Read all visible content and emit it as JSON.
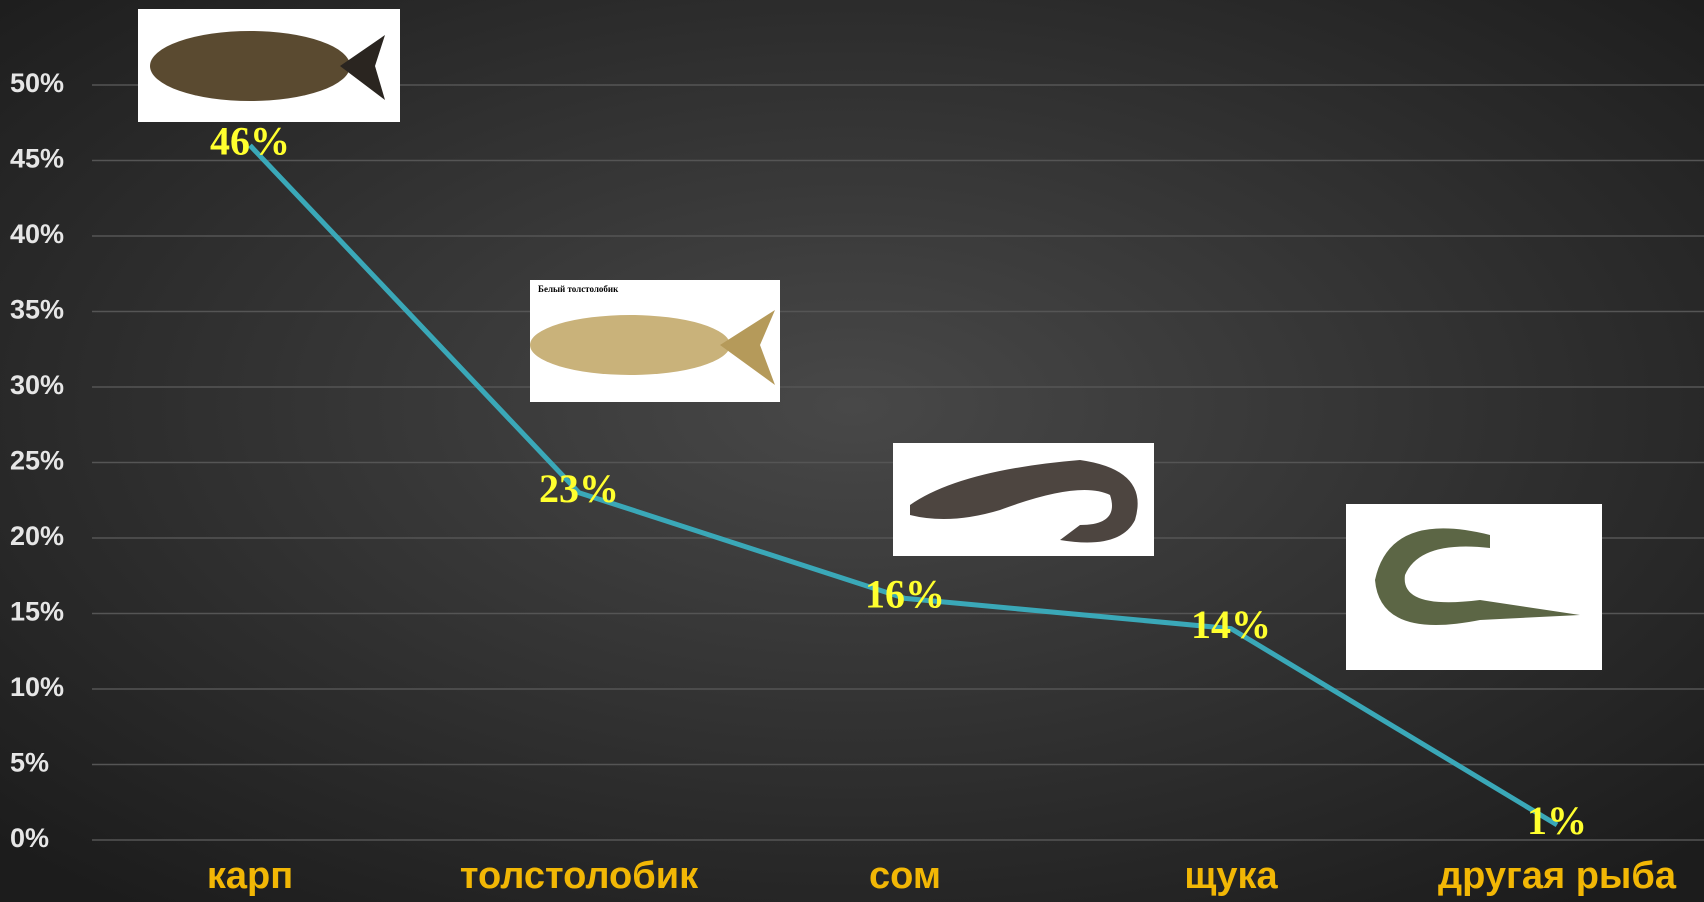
{
  "chart_data": {
    "type": "line",
    "categories": [
      "карп",
      "толстолобик",
      "сом",
      "щука",
      "другая рыба"
    ],
    "series": [
      {
        "values": [
          46,
          23,
          16,
          14,
          1
        ],
        "value_labels": [
          "46%",
          "23%",
          "16%",
          "14%",
          "1%"
        ],
        "color": "#3aa8b8"
      }
    ],
    "ylim": [
      0,
      50
    ],
    "yticks": [
      {
        "value": 0,
        "label": "0%"
      },
      {
        "value": 5,
        "label": "5%"
      },
      {
        "value": 10,
        "label": "10%"
      },
      {
        "value": 15,
        "label": "15%"
      },
      {
        "value": 20,
        "label": "20%"
      },
      {
        "value": 25,
        "label": "25%"
      },
      {
        "value": 30,
        "label": "30%"
      },
      {
        "value": 35,
        "label": "35%"
      },
      {
        "value": 40,
        "label": "40%"
      },
      {
        "value": 45,
        "label": "45%"
      },
      {
        "value": 50,
        "label": "50%"
      }
    ],
    "grid": true,
    "annotations": [
      "Белый толстолобик"
    ]
  }
}
